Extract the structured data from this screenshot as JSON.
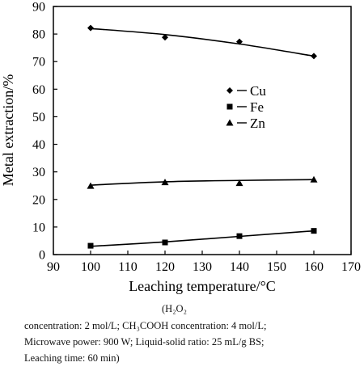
{
  "chart_data": {
    "type": "line",
    "xlabel": "Leaching temperature/°C",
    "ylabel": "Metal extraction/%",
    "xlim": [
      90,
      170
    ],
    "ylim": [
      0,
      90
    ],
    "xticks": [
      90,
      100,
      110,
      120,
      130,
      140,
      150,
      160,
      170
    ],
    "yticks": [
      0,
      10,
      20,
      30,
      40,
      50,
      60,
      70,
      80,
      90
    ],
    "x": [
      100,
      120,
      140,
      160
    ],
    "series": [
      {
        "name": "Cu",
        "marker": "diamond",
        "values": [
          82.2,
          78.8,
          77.2,
          72.0
        ],
        "fit": [
          82.0,
          79.8,
          76.4,
          72.0
        ]
      },
      {
        "name": "Fe",
        "marker": "square",
        "values": [
          3.2,
          4.4,
          6.7,
          8.6
        ],
        "fit": [
          3.0,
          4.6,
          6.6,
          8.6
        ]
      },
      {
        "name": "Zn",
        "marker": "triangle",
        "values": [
          24.9,
          26.2,
          25.9,
          27.2
        ],
        "fit": [
          25.2,
          26.4,
          26.9,
          27.2
        ]
      }
    ],
    "legend_position": "right-middle",
    "grid": false
  },
  "caption": {
    "line1": "(H₂O₂",
    "line2": "concentration: 2 mol/L; CH₃COOH concentration: 4 mol/L;",
    "line3": "Microwave power: 900 W; Liquid-solid ratio: 25 mL/g BS;",
    "line4": "Leaching time: 60 min)"
  }
}
